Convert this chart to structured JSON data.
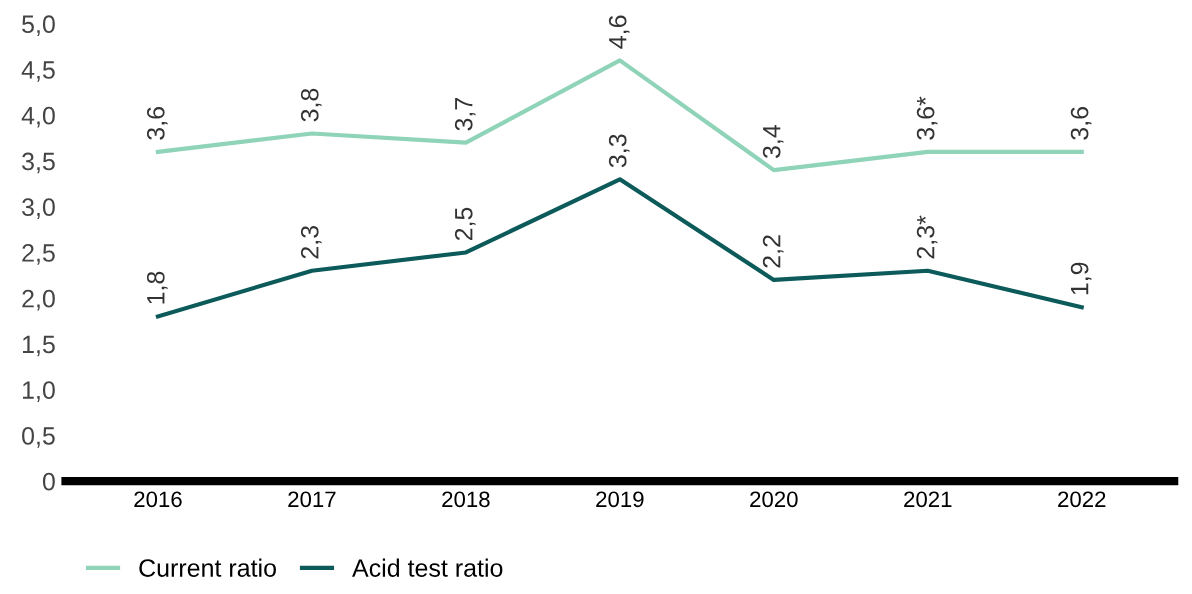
{
  "chart_data": {
    "type": "line",
    "categories": [
      "2016",
      "2017",
      "2018",
      "2019",
      "2020",
      "2021",
      "2022"
    ],
    "series": [
      {
        "name": "Current ratio",
        "color": "#8fd3b8",
        "values": [
          3.6,
          3.8,
          3.7,
          4.6,
          3.4,
          3.6,
          3.6
        ],
        "value_labels": [
          "3,6",
          "3,8",
          "3,7",
          "4,6",
          "3,4",
          "3,6*",
          "3,6"
        ]
      },
      {
        "name": "Acid test ratio",
        "color": "#0c5a5a",
        "values": [
          1.8,
          2.3,
          2.5,
          3.3,
          2.2,
          2.3,
          1.9
        ],
        "value_labels": [
          "1,8",
          "2,3",
          "2,5",
          "3,3",
          "2,2",
          "2,3*",
          "1,9"
        ]
      }
    ],
    "ylim": [
      0,
      5.0
    ],
    "yticks": [
      0,
      {
        "value": 0.5,
        "label": "0,5"
      },
      {
        "value": 1.0,
        "label": "1,0"
      },
      {
        "value": 1.5,
        "label": "1,5"
      },
      {
        "value": 2.0,
        "label": "2,0"
      },
      {
        "value": 2.5,
        "label": "2,5"
      },
      {
        "value": 3.0,
        "label": "3,0"
      },
      {
        "value": 3.5,
        "label": "3,5"
      },
      {
        "value": 4.0,
        "label": "4,0"
      },
      {
        "value": 4.5,
        "label": "4,5"
      },
      {
        "value": 5.0,
        "label": "5,0"
      }
    ],
    "grid": false,
    "legend": "bottom left",
    "marker": "none",
    "line_style": "solid"
  }
}
